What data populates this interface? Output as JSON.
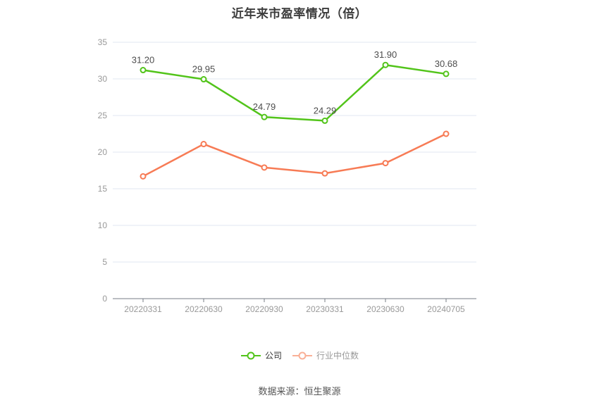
{
  "title": "近年来市盈率情况（倍）",
  "footer": "数据来源：恒生聚源",
  "legend": {
    "items": [
      {
        "label": "公司",
        "icon_color": "#52c41a",
        "text_color": "#333333"
      },
      {
        "label": "行业中位数",
        "icon_color": "#f9b097",
        "text_color": "#999999"
      }
    ]
  },
  "colors": {
    "company_line": "#52c41a",
    "industry_line": "#f77b55",
    "grid_line": "#e2e7f1",
    "axis_line": "#777c85",
    "tick_label": "#999999",
    "data_label": "#4d4d4d",
    "title_text": "#3c3c3c",
    "background": "#ffffff"
  },
  "chart_data": {
    "type": "line",
    "title": "近年来市盈率情况（倍）",
    "categories": [
      "20220331",
      "20220630",
      "20220930",
      "20230331",
      "20230630",
      "20240705"
    ],
    "series": [
      {
        "name": "公司",
        "color": "#52c41a",
        "values": [
          31.2,
          29.95,
          24.79,
          24.29,
          31.9,
          30.68
        ],
        "labels": [
          "31.20",
          "29.95",
          "24.79",
          "24.29",
          "31.90",
          "30.68"
        ],
        "show_labels": true
      },
      {
        "name": "行业中位数",
        "color": "#f77b55",
        "values": [
          16.7,
          21.1,
          17.9,
          17.1,
          18.5,
          22.5
        ],
        "labels": [],
        "show_labels": false
      }
    ],
    "xlabel": "",
    "ylabel": "",
    "ylim": [
      0,
      35
    ],
    "yticks": [
      0,
      5,
      10,
      15,
      20,
      25,
      30,
      35
    ],
    "grid": true,
    "legend_position": "bottom"
  }
}
